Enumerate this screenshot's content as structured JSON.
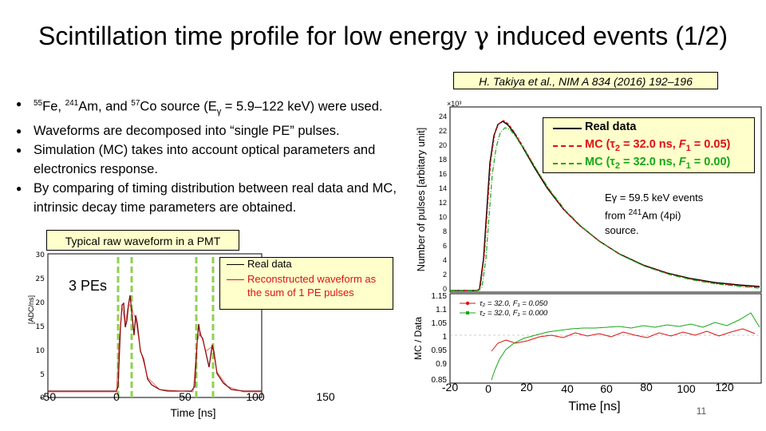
{
  "title": {
    "main": "Scintillation time profile for low energy ",
    "gamma": "γ",
    "rest": " induced events (1/2)"
  },
  "citation": "H. Takiya et al., NIM A 834 (2016) 192–196",
  "bullets": {
    "b1": {
      "sup1": "55",
      "t1": "Fe, ",
      "sup2": "241",
      "t2": "Am, and ",
      "sup3": "57",
      "t3": "Co source (E",
      "sub": "γ",
      "t4": " = 5.9–122 keV) were used."
    },
    "b2": "Waveforms are decomposed into “single PE” pulses.",
    "b3": "Simulation (MC) takes into account optical parameters and electronics response.",
    "b4": "By comparing of timing distribution between real data and MC, intrinsic decay time parameters are obtained."
  },
  "waveform": {
    "caption": "Typical raw waveform in a PMT",
    "annotation": "3 PEs",
    "legend_data": "Real data",
    "legend_recon": "Reconstructed waveform as the sum of 1 PE pulses",
    "ylabel": "[ADC/ns]",
    "xlabel": "Time [ns]",
    "y_ticks": [
      "30",
      "25",
      "20",
      "15",
      "10",
      "5",
      "0"
    ],
    "x_ticks": [
      "-50",
      "0",
      "50",
      "100",
      "150"
    ]
  },
  "time_profile": {
    "ylabel": "Number of pulses [arbitary unit]",
    "exponent": "×10³",
    "y_ticks": [
      "24",
      "22",
      "20",
      "18",
      "16",
      "14",
      "12",
      "10",
      "8",
      "6",
      "4",
      "2",
      "0"
    ],
    "legend": {
      "data": "Real data",
      "mc1_prefix": "MC (",
      "mc1_tau": "τ",
      "mc1_tau_sub": "2",
      "mc1_mid": " = 32.0 ns, ",
      "mc1_f": "F",
      "mc1_f_sub": "1",
      "mc1_end": " = 0.05)",
      "mc2_prefix": "MC (",
      "mc2_tau": "τ",
      "mc2_tau_sub": "2",
      "mc2_mid": " = 32.0 ns, ",
      "mc2_f": "F",
      "mc2_f_sub": "1",
      "mc2_end": " = 0.00)"
    },
    "note": {
      "l1": "Eγ = 59.5 keV events",
      "l2a": "from ",
      "l2sup": "241",
      "l2b": "Am (4pi)",
      "l3": "source."
    }
  },
  "ratio": {
    "ylabel": "MC / Data",
    "y_ticks": [
      "1.15",
      "1.1",
      "1.05",
      "1",
      "0.95",
      "0.9",
      "0.85"
    ],
    "legend1": "τ₂ = 32.0, F₁ = 0.050",
    "legend2": "τ₂ = 32.0, F₁ = 0.000",
    "x_ticks": [
      "-20",
      "0",
      "20",
      "40",
      "60",
      "80",
      "100",
      "120"
    ],
    "xlabel": "Time [ns]"
  },
  "slide_number": "11",
  "colors": {
    "data": "#000000",
    "mc_red": "#dd1111",
    "mc_green": "#16a816",
    "waveform_line": "#7a0c0c",
    "guide_green": "#8fd14f",
    "highlight": "#ffffcc"
  }
}
